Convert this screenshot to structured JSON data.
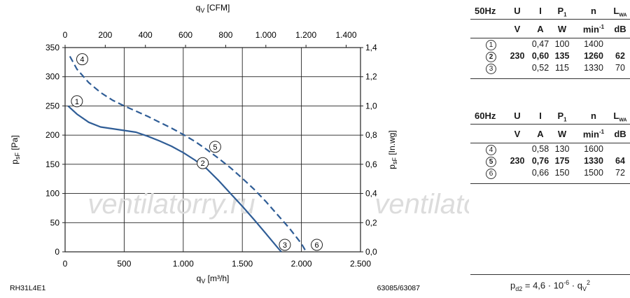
{
  "chart_data": {
    "type": "line",
    "model": "RH31L4E1",
    "ref": "63085/63087",
    "xlabel": "qv [m³/h]",
    "ylabel": "psF [Pa]",
    "top_axis_label": "qv [CFM]",
    "right_axis_label": "psF [In.wg]",
    "xlim": [
      0,
      2500
    ],
    "ylim": [
      0,
      350
    ],
    "top_lim": [
      0,
      1400
    ],
    "right_lim": [
      0,
      1.4
    ],
    "x_ticks": [
      "0",
      "500",
      "1.000",
      "1.500",
      "2.000",
      "2.500"
    ],
    "y_ticks": [
      "0",
      "50",
      "100",
      "150",
      "200",
      "250",
      "300",
      "350"
    ],
    "top_ticks": [
      "0",
      "200",
      "400",
      "600",
      "800",
      "1.000",
      "1.200",
      "1.400"
    ],
    "right_ticks": [
      "0,0",
      "0,2",
      "0,4",
      "0,6",
      "0,8",
      "1,0",
      "1,2",
      "1,4"
    ],
    "grid": true,
    "series": [
      {
        "name": "50Hz",
        "style": "solid",
        "color": "#2f5d96",
        "x": [
          25,
          100,
          200,
          300,
          400,
          500,
          600,
          700,
          800,
          900,
          1000,
          1100,
          1200,
          1300,
          1400,
          1500,
          1600,
          1700,
          1800,
          1830
        ],
        "y": [
          250,
          236,
          222,
          214,
          211,
          208,
          205,
          198,
          190,
          181,
          170,
          157,
          142,
          122,
          100,
          78,
          55,
          31,
          7,
          0
        ]
      },
      {
        "name": "60Hz",
        "style": "dashed",
        "color": "#2f5d96",
        "x": [
          40,
          100,
          200,
          300,
          400,
          500,
          600,
          700,
          800,
          900,
          1000,
          1100,
          1200,
          1300,
          1400,
          1500,
          1600,
          1700,
          1800,
          1900,
          2000,
          2040
        ],
        "y": [
          335,
          313,
          290,
          273,
          260,
          250,
          241,
          232,
          222,
          212,
          201,
          189,
          175,
          160,
          144,
          126,
          107,
          86,
          63,
          40,
          14,
          0
        ]
      }
    ],
    "annotations": [
      {
        "label": "1",
        "x": 100,
        "y": 258
      },
      {
        "label": "2",
        "x": 1165,
        "y": 152
      },
      {
        "label": "3",
        "x": 1860,
        "y": 12
      },
      {
        "label": "4",
        "x": 145,
        "y": 330
      },
      {
        "label": "5",
        "x": 1270,
        "y": 180
      },
      {
        "label": "6",
        "x": 2130,
        "y": 12
      }
    ]
  },
  "watermark": "ventilatorry.ru",
  "table_50hz": {
    "header": [
      "50Hz",
      "U",
      "I",
      "P",
      "1",
      "n",
      "L",
      "WA"
    ],
    "units": [
      "V",
      "A",
      "W",
      "min",
      "-1",
      "dB"
    ],
    "rows": [
      {
        "num": "1",
        "u": "",
        "i": "0,47",
        "p": "100",
        "n": "1400",
        "l": "",
        "bold": false
      },
      {
        "num": "2",
        "u": "230",
        "i": "0,60",
        "p": "135",
        "n": "1260",
        "l": "62",
        "bold": true
      },
      {
        "num": "3",
        "u": "",
        "i": "0,52",
        "p": "115",
        "n": "1330",
        "l": "70",
        "bold": false
      }
    ]
  },
  "table_60hz": {
    "header": [
      "60Hz",
      "U",
      "I",
      "P",
      "1",
      "n",
      "L",
      "WA"
    ],
    "units": [
      "V",
      "A",
      "W",
      "min",
      "-1",
      "dB"
    ],
    "rows": [
      {
        "num": "4",
        "u": "",
        "i": "0,58",
        "p": "130",
        "n": "1600",
        "l": "",
        "bold": false
      },
      {
        "num": "5",
        "u": "230",
        "i": "0,76",
        "p": "175",
        "n": "1330",
        "l": "64",
        "bold": true
      },
      {
        "num": "6",
        "u": "",
        "i": "0,66",
        "p": "150",
        "n": "1500",
        "l": "72",
        "bold": false
      }
    ]
  },
  "formula": {
    "lhs": "p",
    "lhs_sub": "d2",
    "eq": "= 4,6 · 10",
    "exp": "-6",
    "mid": " · q",
    "var_sub": "V",
    "var_sup": "2"
  }
}
